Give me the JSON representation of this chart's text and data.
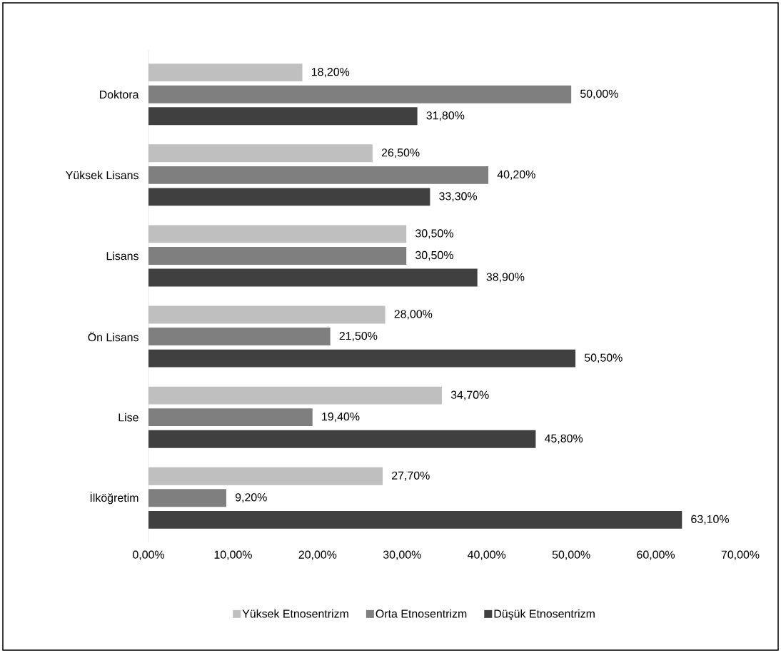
{
  "chart_data": {
    "type": "bar",
    "orientation": "horizontal",
    "categories": [
      "Doktora",
      "Yüksek Lisans",
      "Lisans",
      "Ön Lisans",
      "Lise",
      "İlköğretim"
    ],
    "series": [
      {
        "name": "Yüksek Etnosentrizm",
        "color": "#bfbfbf",
        "values": [
          18.2,
          26.5,
          30.5,
          28.0,
          34.7,
          27.7
        ],
        "value_labels": [
          "18,20%",
          "26,50%",
          "30,50%",
          "28,00%",
          "34,70%",
          "27,70%"
        ]
      },
      {
        "name": "Orta Etnosentrizm",
        "color": "#7f7f7f",
        "values": [
          50.0,
          40.2,
          30.5,
          21.5,
          19.4,
          9.2
        ],
        "value_labels": [
          "50,00%",
          "40,20%",
          "30,50%",
          "21,50%",
          "19,40%",
          "9,20%"
        ]
      },
      {
        "name": "Düşük Etnosentrizm",
        "color": "#404040",
        "values": [
          31.8,
          33.3,
          38.9,
          50.5,
          45.8,
          63.1
        ],
        "value_labels": [
          "31,80%",
          "33,30%",
          "38,90%",
          "50,50%",
          "45,80%",
          "63,10%"
        ]
      }
    ],
    "xlim": [
      0,
      70
    ],
    "xticks": [
      {
        "value": 0,
        "label": "0,00%"
      },
      {
        "value": 10,
        "label": "10,00%"
      },
      {
        "value": 20,
        "label": "20,00%"
      },
      {
        "value": 30,
        "label": "30,00%"
      },
      {
        "value": 40,
        "label": "40,00%"
      },
      {
        "value": 50,
        "label": "50,00%"
      },
      {
        "value": 60,
        "label": "60,00%"
      },
      {
        "value": 70,
        "label": "70,00%"
      }
    ],
    "grid": false,
    "legend": "bottom"
  }
}
